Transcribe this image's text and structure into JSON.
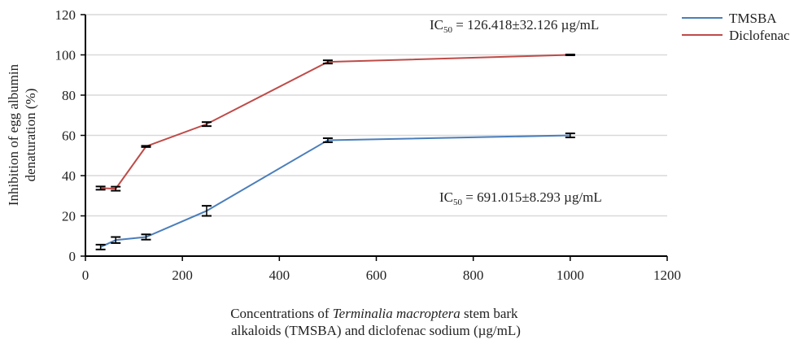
{
  "chart_data": {
    "type": "line",
    "xlabel_parts": [
      "Concentrations of ",
      "Terminalia macroptera",
      " stem bark",
      "alkaloids (TMSBA) and diclofenac sodium (µg/mL)"
    ],
    "ylabel_lines": [
      "Inhibition of egg albumin",
      "denaturation (%)"
    ],
    "xlim": [
      0,
      1200
    ],
    "ylim": [
      0,
      120
    ],
    "xticks": [
      "0",
      "200",
      "400",
      "600",
      "800",
      "1000",
      "1200"
    ],
    "yticks": [
      "0",
      "20",
      "40",
      "60",
      "80",
      "100",
      "120"
    ],
    "grid": "horizontal",
    "legend_position": "top-right",
    "x": [
      31.25,
      62.5,
      125,
      250,
      500,
      1000
    ],
    "series": [
      {
        "name": "TMSBA",
        "color": "#4a7ebb",
        "values": [
          4.5,
          8,
          9.5,
          22.5,
          57.6,
          60
        ],
        "errors": [
          1.2,
          1.5,
          1.3,
          2.5,
          1,
          1
        ]
      },
      {
        "name": "Diclofenac",
        "color": "#be4b48",
        "values": [
          33.8,
          33.5,
          54.5,
          65.6,
          96.5,
          100
        ],
        "errors": [
          0.8,
          1,
          0.3,
          1,
          0.8,
          0.2
        ]
      }
    ],
    "annotations": [
      {
        "prefix": "IC",
        "sub": "50",
        "text": " = 126.418±32.126 µg/mL"
      },
      {
        "prefix": "IC",
        "sub": "50",
        "text": " = 691.015±8.293 µg/mL"
      }
    ]
  }
}
